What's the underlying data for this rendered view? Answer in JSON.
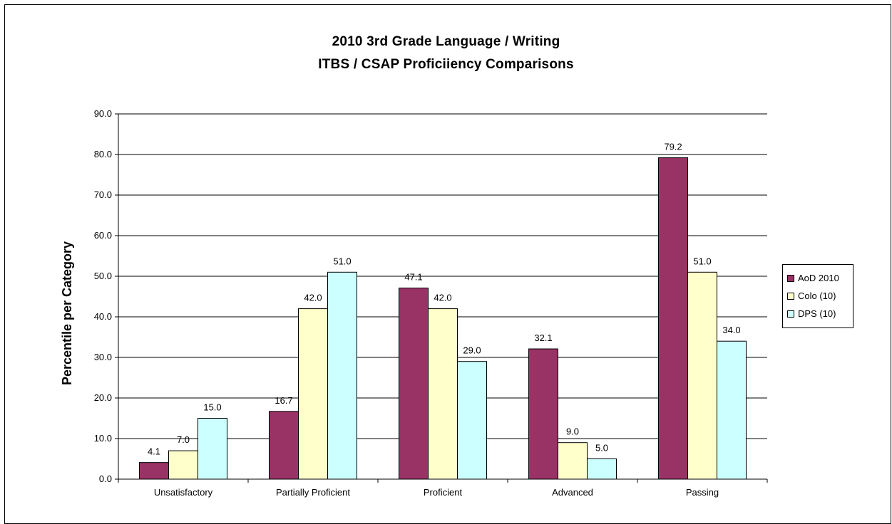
{
  "chart_data": {
    "type": "bar",
    "title": "2010 3rd Grade Language / Writing",
    "subtitle": "ITBS / CSAP Proficiiency Comparisons",
    "xlabel": "",
    "ylabel": "Percentile per Category",
    "ylim": [
      0,
      90
    ],
    "yticks": [
      "0.0",
      "10.0",
      "20.0",
      "30.0",
      "40.0",
      "50.0",
      "60.0",
      "70.0",
      "80.0",
      "90.0"
    ],
    "grid": true,
    "legend_position": "right",
    "categories": [
      "Unsatisfactory",
      "Partially Proficient",
      "Proficient",
      "Advanced",
      "Passing"
    ],
    "series": [
      {
        "name": "AoD 2010",
        "color": "#993366",
        "values": [
          4.1,
          16.7,
          47.1,
          32.1,
          79.2
        ],
        "labels": [
          "4.1",
          "16.7",
          "47.1",
          "32.1",
          "79.2"
        ]
      },
      {
        "name": "Colo (10)",
        "color": "#FFFFCC",
        "values": [
          7.0,
          42.0,
          42.0,
          9.0,
          51.0
        ],
        "labels": [
          "7.0",
          "42.0",
          "42.0",
          "9.0",
          "51.0"
        ]
      },
      {
        "name": "DPS (10)",
        "color": "#CCFFFF",
        "values": [
          15.0,
          51.0,
          29.0,
          5.0,
          34.0
        ],
        "labels": [
          "15.0",
          "51.0",
          "29.0",
          "5.0",
          "34.0"
        ]
      }
    ]
  }
}
